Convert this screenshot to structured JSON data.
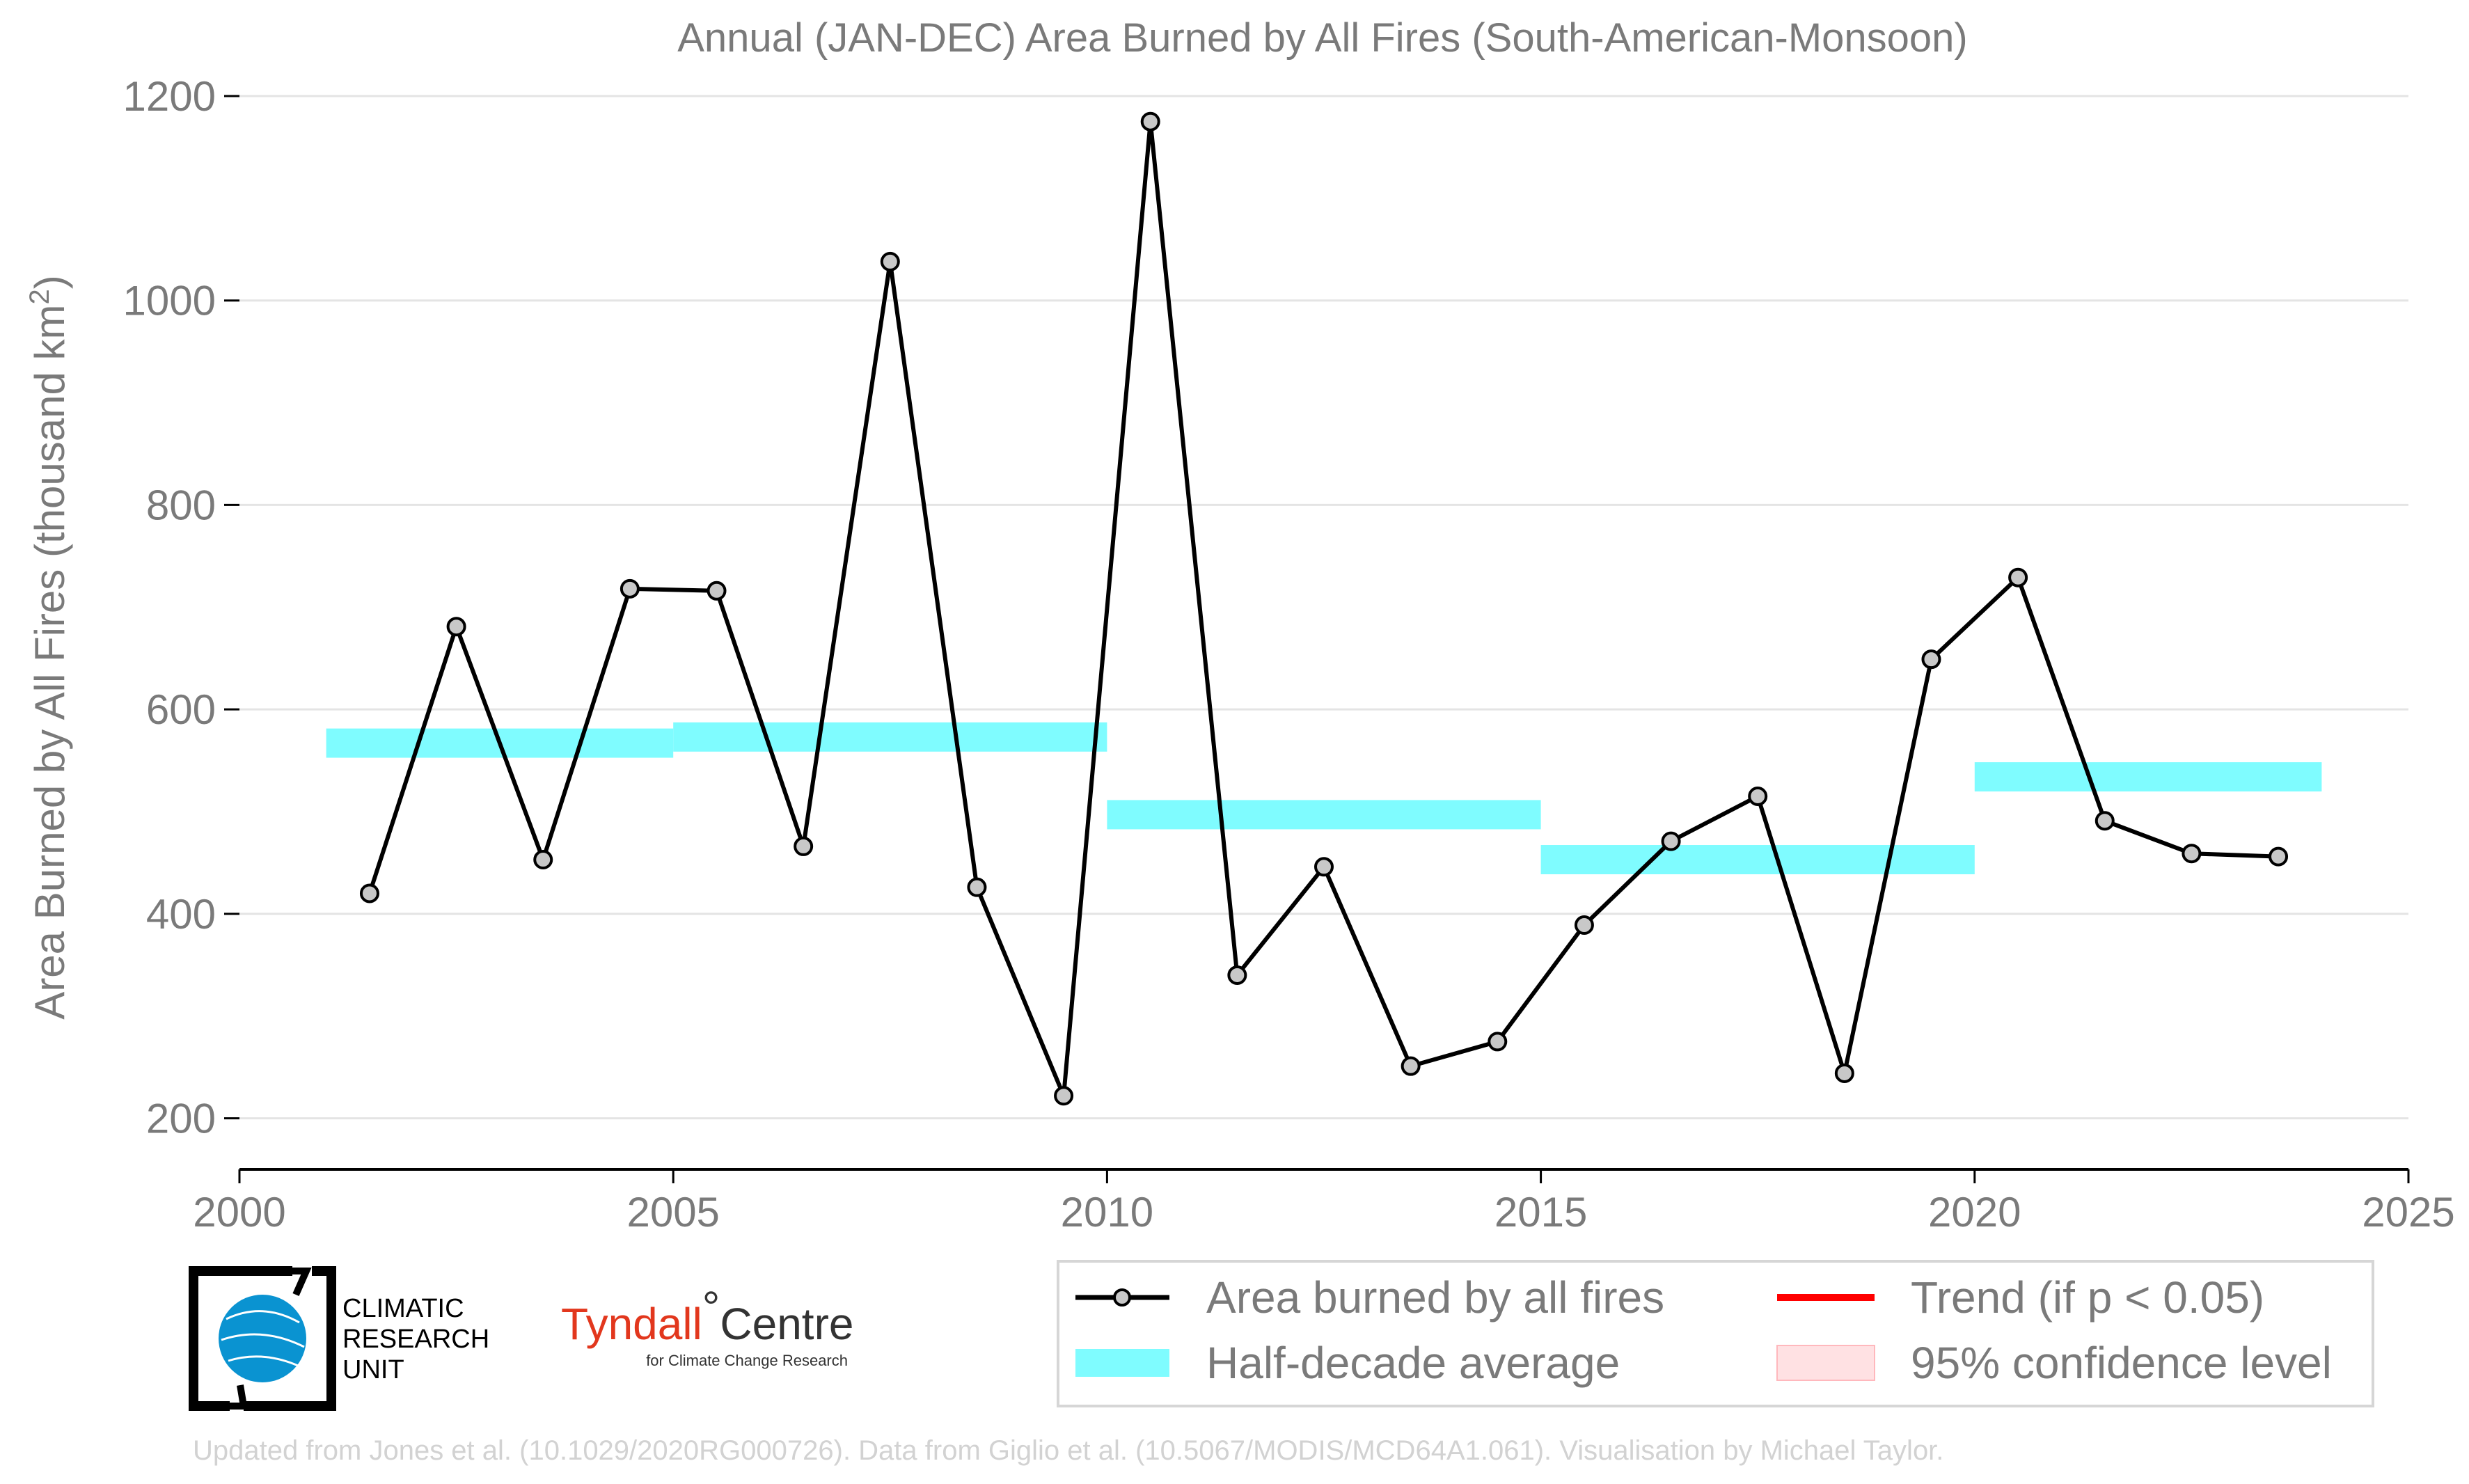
{
  "chart_data": {
    "type": "line",
    "title": "Annual (JAN-DEC) Area Burned by All Fires (South-American-Monsoon)",
    "ylabel_main": "Area Burned by All Fires (thousand km",
    "ylabel_sup": "2",
    "ylabel_end": ")",
    "xlabel": "",
    "xlim": [
      2000,
      2025
    ],
    "ylim": [
      150,
      1200
    ],
    "xticks": [
      2000,
      2005,
      2010,
      2015,
      2020,
      2025
    ],
    "yticks": [
      200,
      400,
      600,
      800,
      1000,
      1200
    ],
    "grid": "horizontal",
    "series": [
      {
        "name": "Area burned by all fires",
        "color": "#000000",
        "marker_fill": "#c8c8c8",
        "x": [
          2001.5,
          2002.5,
          2003.5,
          2004.5,
          2005.5,
          2006.5,
          2007.5,
          2008.5,
          2009.5,
          2010.5,
          2011.5,
          2012.5,
          2013.5,
          2014.5,
          2015.5,
          2016.5,
          2017.5,
          2018.5,
          2019.5,
          2020.5,
          2021.5,
          2022.5,
          2023.5
        ],
        "values": [
          420,
          681,
          453,
          718,
          716,
          466,
          1038,
          426,
          222,
          1175,
          340,
          446,
          251,
          275,
          389,
          471,
          515,
          244,
          649,
          729,
          491,
          459,
          456
        ]
      }
    ],
    "half_decade_average": {
      "name": "Half-decade average",
      "color": "#7ffcff",
      "segments": [
        {
          "x0": 2001,
          "x1": 2005,
          "y": 567
        },
        {
          "x0": 2005,
          "x1": 2010,
          "y": 573
        },
        {
          "x0": 2010,
          "x1": 2015,
          "y": 497
        },
        {
          "x0": 2015,
          "x1": 2020,
          "y": 453
        },
        {
          "x0": 2020,
          "x1": 2024,
          "y": 534
        }
      ]
    },
    "legend": {
      "placement": "bottom-right",
      "items": [
        {
          "label": "Area burned by all fires",
          "kind": "line-marker",
          "color": "#000000"
        },
        {
          "label": "Trend (if p < 0.05)",
          "kind": "line",
          "color": "#ff0000"
        },
        {
          "label": "Half-decade average",
          "kind": "band",
          "color": "#7ffcff"
        },
        {
          "label": "95% confidence level",
          "kind": "patch",
          "color": "#ffe1e3"
        }
      ]
    }
  },
  "logos": {
    "cru": {
      "line1": "CLIMATIC",
      "line2": "RESEARCH",
      "line3": "UNIT"
    },
    "tyndall": {
      "main": "Tyndall",
      "degree": "°",
      "centre": "Centre",
      "sub": "for Climate Change Research"
    }
  },
  "footer": "Updated from Jones et al. (10.1029/2020RG000726). Data from Giglio et al. (10.5067/MODIS/MCD64A1.061). Visualisation by Michael Taylor."
}
